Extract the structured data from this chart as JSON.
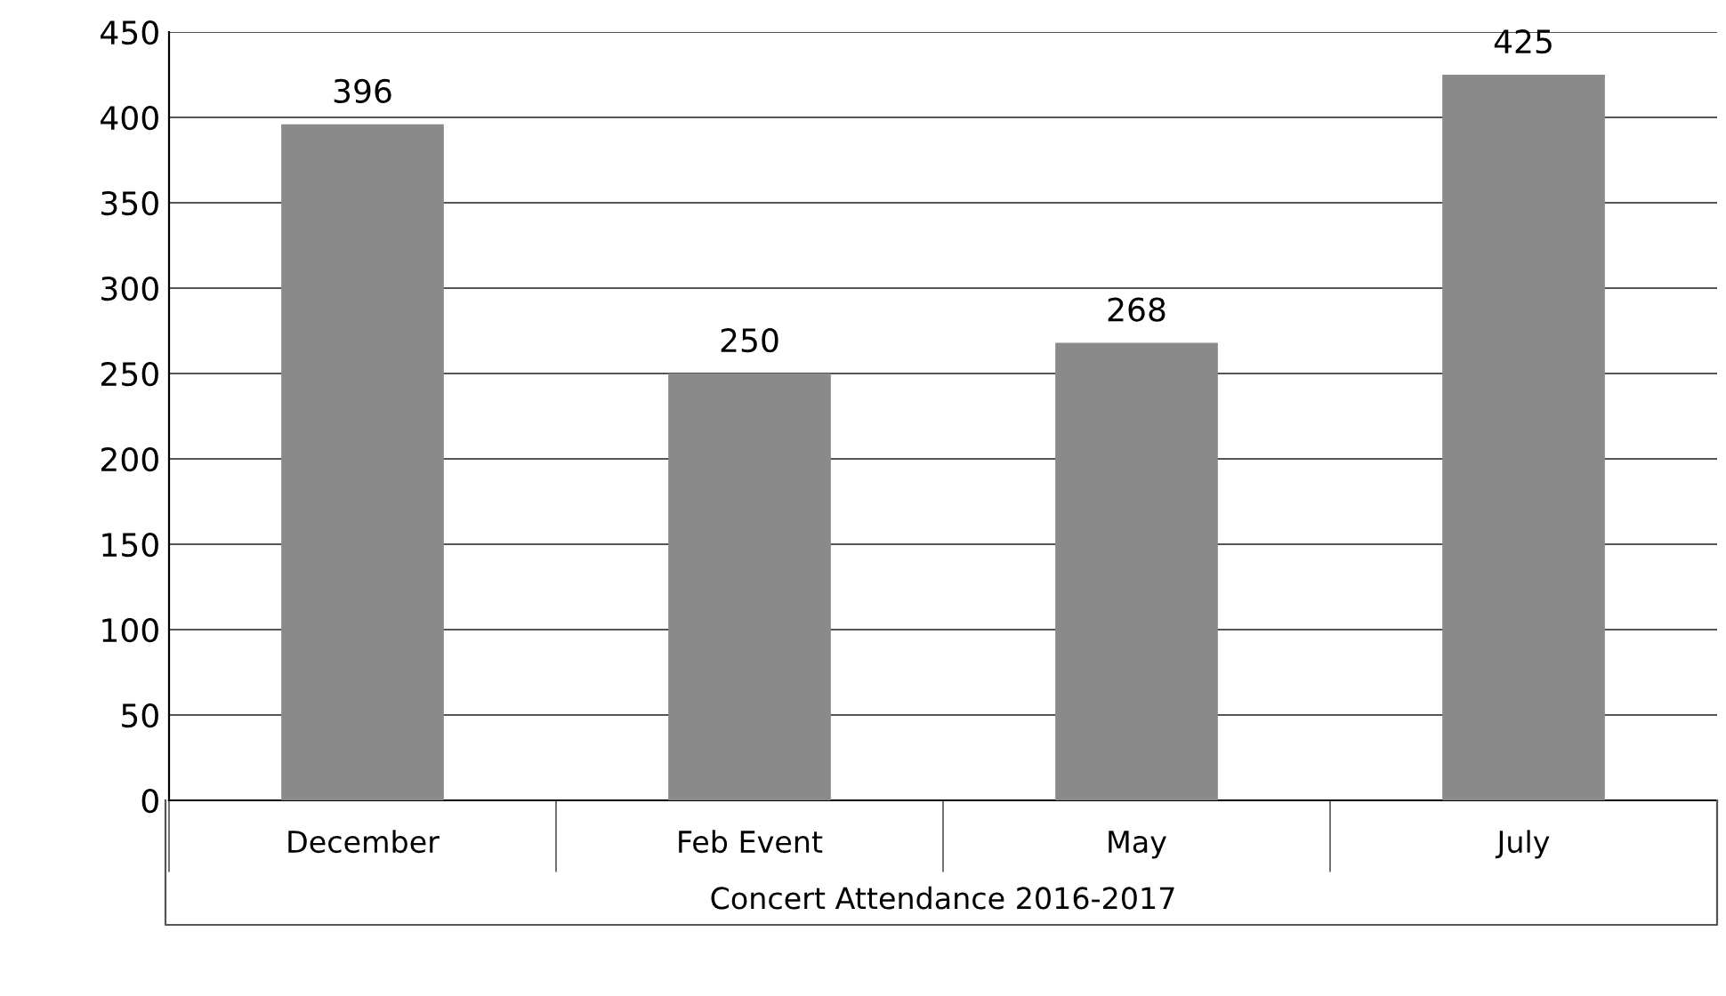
{
  "chart_data": {
    "type": "bar",
    "xlabel": "Concert Attendance 2016-2017",
    "categories": [
      "December",
      "Feb Event",
      "May",
      "July"
    ],
    "values": [
      396,
      250,
      268,
      425
    ],
    "color": "#8a8a8a",
    "ylim": [
      0,
      450
    ],
    "yticks": [
      0,
      50,
      100,
      150,
      200,
      250,
      300,
      350,
      400,
      450
    ],
    "grid": "y",
    "data_labels": true
  }
}
